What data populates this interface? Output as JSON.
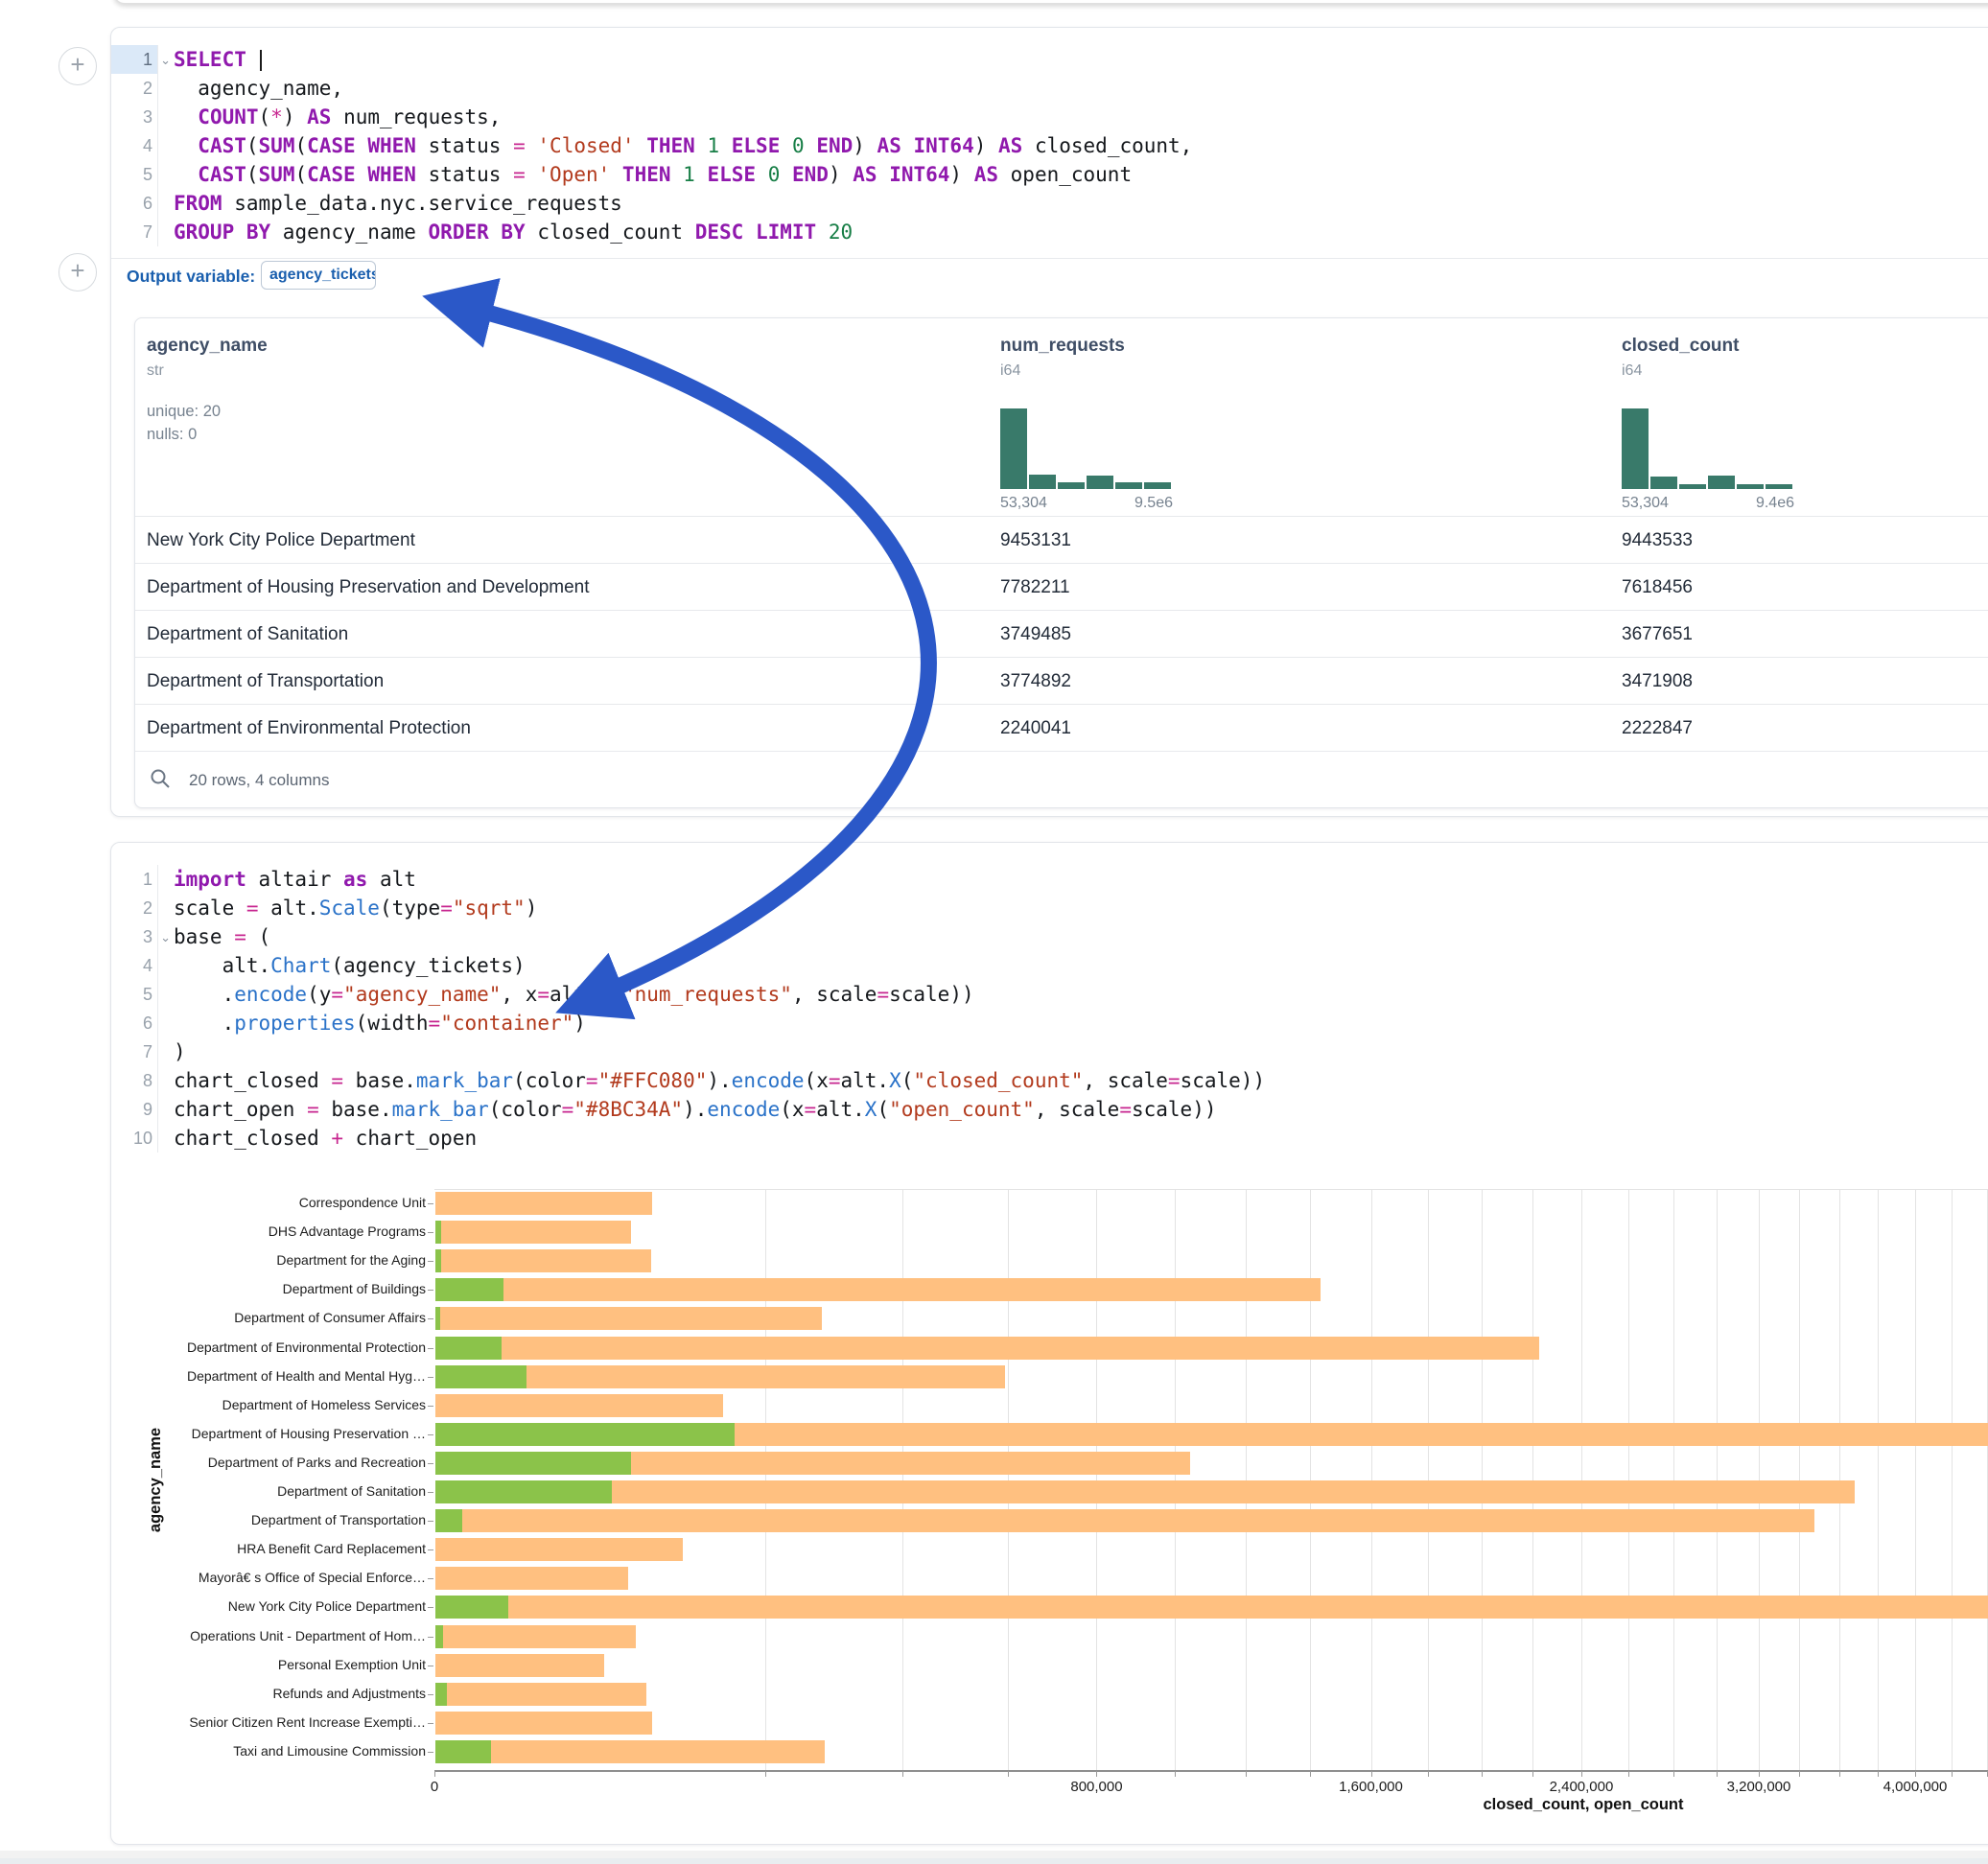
{
  "colors": {
    "bar_closed": "#FFC080",
    "bar_open": "#8BC34A",
    "histogram_teal": "#397a6a",
    "accent_blue": "#1a5fae",
    "arrow_blue": "#2b58c8"
  },
  "gutter": {
    "add_cell_label": "+"
  },
  "sql_cell": {
    "lines": [
      {
        "n": "1",
        "chevron": true,
        "active": true,
        "tokens": [
          [
            "kw",
            "SELECT"
          ],
          [
            "id",
            " "
          ],
          [
            "caret",
            ""
          ]
        ]
      },
      {
        "n": "2",
        "tokens": [
          [
            "id",
            "  agency_name,"
          ]
        ]
      },
      {
        "n": "3",
        "tokens": [
          [
            "id",
            "  "
          ],
          [
            "kw",
            "COUNT"
          ],
          [
            "punc",
            "("
          ],
          [
            "op",
            "*"
          ],
          [
            "punc",
            ") "
          ],
          [
            "kw",
            "AS"
          ],
          [
            "id",
            " num_requests,"
          ]
        ]
      },
      {
        "n": "4",
        "tokens": [
          [
            "id",
            "  "
          ],
          [
            "kw",
            "CAST"
          ],
          [
            "punc",
            "("
          ],
          [
            "kw",
            "SUM"
          ],
          [
            "punc",
            "("
          ],
          [
            "kw",
            "CASE"
          ],
          [
            "id",
            " "
          ],
          [
            "kw",
            "WHEN"
          ],
          [
            "id",
            " status "
          ],
          [
            "op",
            "="
          ],
          [
            "id",
            " "
          ],
          [
            "str",
            "'Closed'"
          ],
          [
            "id",
            " "
          ],
          [
            "kw",
            "THEN"
          ],
          [
            "id",
            " "
          ],
          [
            "num",
            "1"
          ],
          [
            "id",
            " "
          ],
          [
            "kw",
            "ELSE"
          ],
          [
            "id",
            " "
          ],
          [
            "num",
            "0"
          ],
          [
            "id",
            " "
          ],
          [
            "kw",
            "END"
          ],
          [
            "punc",
            ") "
          ],
          [
            "kw",
            "AS"
          ],
          [
            "id",
            " "
          ],
          [
            "kw",
            "INT64"
          ],
          [
            "punc",
            ") "
          ],
          [
            "kw",
            "AS"
          ],
          [
            "id",
            " closed_count,"
          ]
        ]
      },
      {
        "n": "5",
        "tokens": [
          [
            "id",
            "  "
          ],
          [
            "kw",
            "CAST"
          ],
          [
            "punc",
            "("
          ],
          [
            "kw",
            "SUM"
          ],
          [
            "punc",
            "("
          ],
          [
            "kw",
            "CASE"
          ],
          [
            "id",
            " "
          ],
          [
            "kw",
            "WHEN"
          ],
          [
            "id",
            " status "
          ],
          [
            "op",
            "="
          ],
          [
            "id",
            " "
          ],
          [
            "str",
            "'Open'"
          ],
          [
            "id",
            " "
          ],
          [
            "kw",
            "THEN"
          ],
          [
            "id",
            " "
          ],
          [
            "num",
            "1"
          ],
          [
            "id",
            " "
          ],
          [
            "kw",
            "ELSE"
          ],
          [
            "id",
            " "
          ],
          [
            "num",
            "0"
          ],
          [
            "id",
            " "
          ],
          [
            "kw",
            "END"
          ],
          [
            "punc",
            ") "
          ],
          [
            "kw",
            "AS"
          ],
          [
            "id",
            " "
          ],
          [
            "kw",
            "INT64"
          ],
          [
            "punc",
            ") "
          ],
          [
            "kw",
            "AS"
          ],
          [
            "id",
            " open_count"
          ]
        ]
      },
      {
        "n": "6",
        "tokens": [
          [
            "kw",
            "FROM"
          ],
          [
            "id",
            " sample_data.nyc.service_requests"
          ]
        ]
      },
      {
        "n": "7",
        "tokens": [
          [
            "kw",
            "GROUP BY"
          ],
          [
            "id",
            " agency_name "
          ],
          [
            "kw",
            "ORDER BY"
          ],
          [
            "id",
            " closed_count "
          ],
          [
            "kw",
            "DESC"
          ],
          [
            "id",
            " "
          ],
          [
            "kw",
            "LIMIT"
          ],
          [
            "id",
            " "
          ],
          [
            "num",
            "20"
          ]
        ]
      }
    ]
  },
  "output_variable": {
    "label": "Output variable:",
    "value": "agency_tickets"
  },
  "table": {
    "columns": [
      {
        "name": "agency_name",
        "type": "str",
        "stats": [
          "unique: 20",
          "nulls: 0"
        ]
      },
      {
        "name": "num_requests",
        "type": "i64",
        "hist": [
          95,
          17,
          8,
          16,
          8,
          8
        ],
        "hist_labels": [
          "53,304",
          "9.5e6"
        ]
      },
      {
        "name": "closed_count",
        "type": "i64",
        "hist": [
          95,
          15,
          6,
          16,
          6,
          6
        ],
        "hist_labels": [
          "53,304",
          "9.4e6"
        ]
      }
    ],
    "rows": [
      [
        "New York City Police Department",
        "9453131",
        "9443533"
      ],
      [
        "Department of Housing Preservation and Development",
        "7782211",
        "7618456"
      ],
      [
        "Department of Sanitation",
        "3749485",
        "3677651"
      ],
      [
        "Department of Transportation",
        "3774892",
        "3471908"
      ],
      [
        "Department of Environmental Protection",
        "2240041",
        "2222847"
      ]
    ],
    "footer_text": "20 rows, 4 columns"
  },
  "py_cell": {
    "lines": [
      {
        "n": "1",
        "tokens": [
          [
            "kw",
            "import"
          ],
          [
            "id",
            " altair "
          ],
          [
            "kw",
            "as"
          ],
          [
            "id",
            " alt"
          ]
        ]
      },
      {
        "n": "2",
        "tokens": [
          [
            "id",
            "scale "
          ],
          [
            "op",
            "="
          ],
          [
            "id",
            " alt."
          ],
          [
            "fn",
            "Scale"
          ],
          [
            "punc",
            "("
          ],
          [
            "id",
            "type"
          ],
          [
            "op",
            "="
          ],
          [
            "str",
            "\"sqrt\""
          ],
          [
            "punc",
            ")"
          ]
        ]
      },
      {
        "n": "3",
        "chevron": true,
        "tokens": [
          [
            "id",
            "base "
          ],
          [
            "op",
            "="
          ],
          [
            "punc",
            " ("
          ]
        ]
      },
      {
        "n": "4",
        "tokens": [
          [
            "id",
            "    alt."
          ],
          [
            "fn",
            "Chart"
          ],
          [
            "punc",
            "("
          ],
          [
            "id",
            "agency_tickets"
          ],
          [
            "punc",
            ")"
          ]
        ]
      },
      {
        "n": "5",
        "tokens": [
          [
            "id",
            "    ."
          ],
          [
            "fn",
            "encode"
          ],
          [
            "punc",
            "("
          ],
          [
            "id",
            "y"
          ],
          [
            "op",
            "="
          ],
          [
            "str",
            "\"agency_name\""
          ],
          [
            "punc",
            ", "
          ],
          [
            "id",
            "x"
          ],
          [
            "op",
            "="
          ],
          [
            "id",
            "alt."
          ],
          [
            "fn",
            "X"
          ],
          [
            "punc",
            "("
          ],
          [
            "str",
            "\"num_requests\""
          ],
          [
            "punc",
            ", "
          ],
          [
            "id",
            "scale"
          ],
          [
            "op",
            "="
          ],
          [
            "id",
            "scale"
          ],
          [
            "punc",
            "))"
          ]
        ]
      },
      {
        "n": "6",
        "tokens": [
          [
            "id",
            "    ."
          ],
          [
            "fn",
            "properties"
          ],
          [
            "punc",
            "("
          ],
          [
            "id",
            "width"
          ],
          [
            "op",
            "="
          ],
          [
            "str",
            "\"container\""
          ],
          [
            "punc",
            ")"
          ]
        ]
      },
      {
        "n": "7",
        "tokens": [
          [
            "punc",
            ")"
          ]
        ]
      },
      {
        "n": "8",
        "tokens": [
          [
            "id",
            "chart_closed "
          ],
          [
            "op",
            "="
          ],
          [
            "id",
            " base."
          ],
          [
            "fn",
            "mark_bar"
          ],
          [
            "punc",
            "("
          ],
          [
            "id",
            "color"
          ],
          [
            "op",
            "="
          ],
          [
            "str",
            "\"#FFC080\""
          ],
          [
            "punc",
            ")."
          ],
          [
            "fn",
            "encode"
          ],
          [
            "punc",
            "("
          ],
          [
            "id",
            "x"
          ],
          [
            "op",
            "="
          ],
          [
            "id",
            "alt."
          ],
          [
            "fn",
            "X"
          ],
          [
            "punc",
            "("
          ],
          [
            "str",
            "\"closed_count\""
          ],
          [
            "punc",
            ", "
          ],
          [
            "id",
            "scale"
          ],
          [
            "op",
            "="
          ],
          [
            "id",
            "scale"
          ],
          [
            "punc",
            "))"
          ]
        ]
      },
      {
        "n": "9",
        "tokens": [
          [
            "id",
            "chart_open "
          ],
          [
            "op",
            "="
          ],
          [
            "id",
            " base."
          ],
          [
            "fn",
            "mark_bar"
          ],
          [
            "punc",
            "("
          ],
          [
            "id",
            "color"
          ],
          [
            "op",
            "="
          ],
          [
            "str",
            "\"#8BC34A\""
          ],
          [
            "punc",
            ")."
          ],
          [
            "fn",
            "encode"
          ],
          [
            "punc",
            "("
          ],
          [
            "id",
            "x"
          ],
          [
            "op",
            "="
          ],
          [
            "id",
            "alt."
          ],
          [
            "fn",
            "X"
          ],
          [
            "punc",
            "("
          ],
          [
            "str",
            "\"open_count\""
          ],
          [
            "punc",
            ", "
          ],
          [
            "id",
            "scale"
          ],
          [
            "op",
            "="
          ],
          [
            "id",
            "scale"
          ],
          [
            "punc",
            "))"
          ]
        ]
      },
      {
        "n": "10",
        "tokens": [
          [
            "id",
            "chart_closed "
          ],
          [
            "op",
            "+"
          ],
          [
            "id",
            " chart_open"
          ]
        ]
      }
    ]
  },
  "chart_data": {
    "type": "bar",
    "orientation": "horizontal",
    "x_scale": "sqrt",
    "xlabel": "closed_count, open_count",
    "ylabel": "agency_name",
    "grid_step": 200000,
    "x_ticks": [
      {
        "label": "0",
        "value": 0
      },
      {
        "label": "800,000",
        "value": 800000
      },
      {
        "label": "1,600,000",
        "value": 1600000
      },
      {
        "label": "2,400,000",
        "value": 2400000
      },
      {
        "label": "3,200,000",
        "value": 3200000
      },
      {
        "label": "4,000,000",
        "value": 4000000
      }
    ],
    "categories": [
      "Correspondence Unit",
      "DHS Advantage Programs",
      "Department for the Aging",
      "Department of Buildings",
      "Department of Consumer Affairs",
      "Department of Environmental Protection",
      "Department of Health and Mental Hyg…",
      "Department of Homeless Services",
      "Department of Housing Preservation …",
      "Department of Parks and Recreation",
      "Department of Sanitation",
      "Department of Transportation",
      "HRA Benefit Card Replacement",
      "Mayorâ€ s Office of Special Enforce…",
      "New York City Police Department",
      "Operations Unit - Department of Hom…",
      "Personal Exemption Unit",
      "Refunds and Adjustments",
      "Senior Citizen Rent Increase Exempti…",
      "Taxi and Limousine Commission"
    ],
    "series": [
      {
        "name": "closed_count",
        "color": "#FFC080",
        "values": [
          86000,
          70000,
          85000,
          1430000,
          272000,
          2222847,
          592000,
          151000,
          7618456,
          1040000,
          3677651,
          3471908,
          112000,
          68000,
          9443533,
          73000,
          52000,
          81000,
          86000,
          276000
        ]
      },
      {
        "name": "open_count",
        "color": "#8BC34A",
        "values": [
          0,
          60,
          60,
          8500,
          40,
          8000,
          15000,
          0,
          163755,
          70000,
          57000,
          1300,
          0,
          0,
          9598,
          100,
          0,
          250,
          0,
          5600
        ]
      }
    ]
  }
}
